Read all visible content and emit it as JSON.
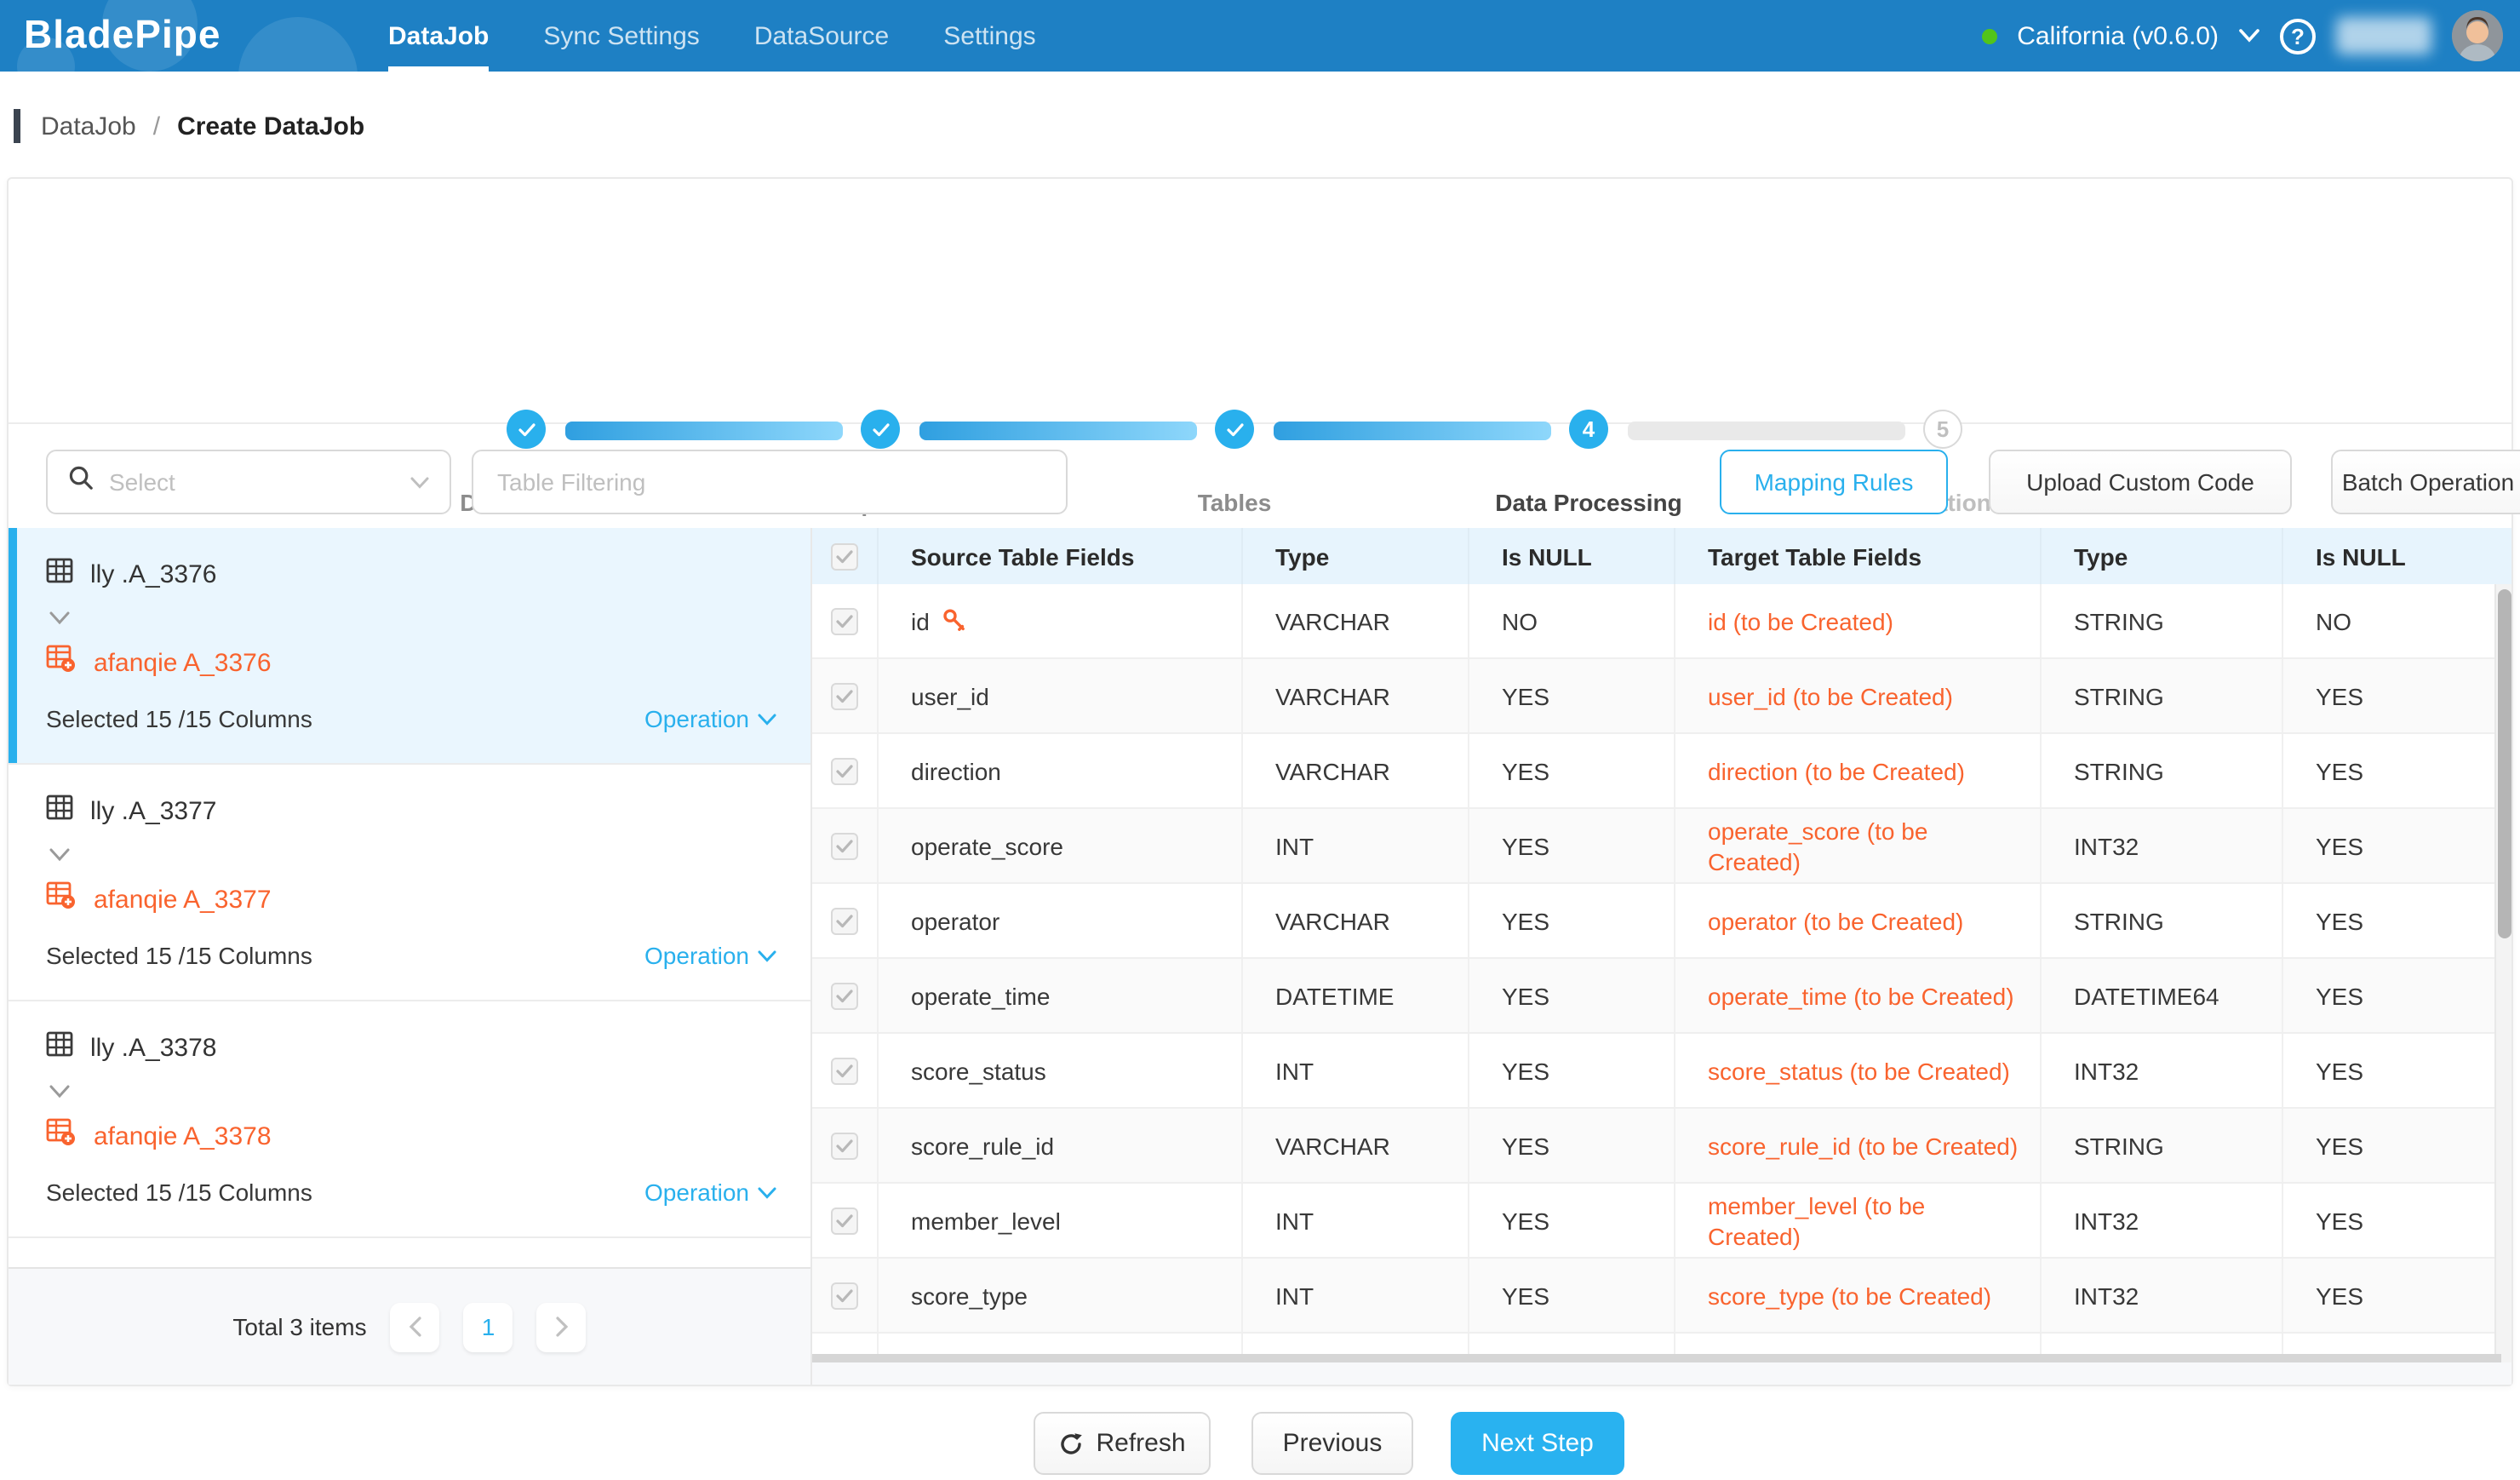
{
  "navbar": {
    "logo": "BladePipe",
    "items": [
      {
        "label": "DataJob",
        "active": true
      },
      {
        "label": "Sync Settings",
        "active": false
      },
      {
        "label": "DataSource",
        "active": false
      },
      {
        "label": "Settings",
        "active": false
      }
    ],
    "region": "California (v0.6.0)",
    "status_color": "#52c41a"
  },
  "breadcrumb": {
    "parent": "DataJob",
    "separator": "/",
    "current": "Create DataJob"
  },
  "stepper": {
    "steps": [
      {
        "label": "DataSource",
        "state": "done"
      },
      {
        "label": "Properties",
        "state": "done"
      },
      {
        "label": "Tables",
        "state": "done"
      },
      {
        "label": "Data Processing",
        "state": "active",
        "number": "4"
      },
      {
        "label": "Creation",
        "state": "pending",
        "number": "5"
      }
    ]
  },
  "toolbar": {
    "select_placeholder": "Select",
    "filter_placeholder": "Table Filtering",
    "mapping_rules": "Mapping Rules",
    "upload_custom_code": "Upload Custom Code",
    "batch_operation": "Batch Operation"
  },
  "left_panel": {
    "items": [
      {
        "source": "lly .A_3376",
        "target": "afanqie A_3376",
        "selected": "Selected 15 /15 Columns",
        "operation": "Operation",
        "active": true
      },
      {
        "source": "lly .A_3377",
        "target": "afanqie A_3377",
        "selected": "Selected 15 /15 Columns",
        "operation": "Operation",
        "active": false
      },
      {
        "source": "lly .A_3378",
        "target": "afanqie A_3378",
        "selected": "Selected 15 /15 Columns",
        "operation": "Operation",
        "active": false
      }
    ],
    "pagination": {
      "total": "Total 3 items",
      "page": "1"
    }
  },
  "table": {
    "columns": [
      "Source Table Fields",
      "Type",
      "Is NULL",
      "Target Table Fields",
      "Type",
      "Is NULL"
    ],
    "rows": [
      {
        "field": "id",
        "key": true,
        "type": "VARCHAR",
        "nullable": "NO",
        "target": "id (to be Created)",
        "target_type": "STRING",
        "target_nullable": "NO"
      },
      {
        "field": "user_id",
        "key": false,
        "type": "VARCHAR",
        "nullable": "YES",
        "target": "user_id (to be Created)",
        "target_type": "STRING",
        "target_nullable": "YES"
      },
      {
        "field": "direction",
        "key": false,
        "type": "VARCHAR",
        "nullable": "YES",
        "target": "direction (to be Created)",
        "target_type": "STRING",
        "target_nullable": "YES"
      },
      {
        "field": "operate_score",
        "key": false,
        "type": "INT",
        "nullable": "YES",
        "target": "operate_score (to be Created)",
        "target_type": "INT32",
        "target_nullable": "YES"
      },
      {
        "field": "operator",
        "key": false,
        "type": "VARCHAR",
        "nullable": "YES",
        "target": "operator (to be Created)",
        "target_type": "STRING",
        "target_nullable": "YES"
      },
      {
        "field": "operate_time",
        "key": false,
        "type": "DATETIME",
        "nullable": "YES",
        "target": "operate_time (to be Created)",
        "target_type": "DATETIME64",
        "target_nullable": "YES"
      },
      {
        "field": "score_status",
        "key": false,
        "type": "INT",
        "nullable": "YES",
        "target": "score_status (to be Created)",
        "target_type": "INT32",
        "target_nullable": "YES"
      },
      {
        "field": "score_rule_id",
        "key": false,
        "type": "VARCHAR",
        "nullable": "YES",
        "target": "score_rule_id (to be Created)",
        "target_type": "STRING",
        "target_nullable": "YES"
      },
      {
        "field": "member_level",
        "key": false,
        "type": "INT",
        "nullable": "YES",
        "target": "member_level (to be Created)",
        "target_type": "INT32",
        "target_nullable": "YES"
      },
      {
        "field": "score_type",
        "key": false,
        "type": "INT",
        "nullable": "YES",
        "target": "score_type (to be Created)",
        "target_type": "INT32",
        "target_nullable": "YES"
      }
    ]
  },
  "footer": {
    "refresh": "Refresh",
    "previous": "Previous",
    "next": "Next Step"
  },
  "colors": {
    "primary": "#29b0ed",
    "orange": "#f9632e",
    "navbar_blue": "#1e80c4",
    "status_green": "#52c41a"
  }
}
